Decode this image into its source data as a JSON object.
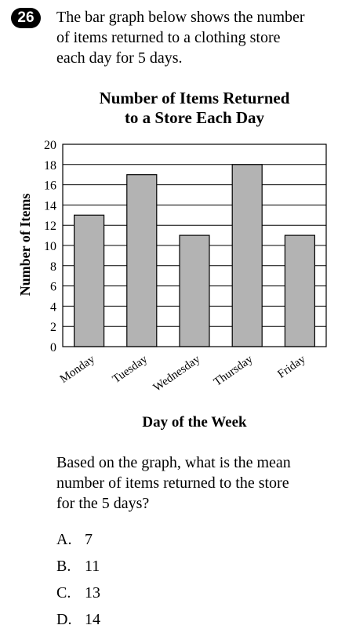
{
  "question": {
    "number": "26",
    "prompt_lines": [
      "The bar graph below shows the number",
      "of items returned to a clothing store",
      "each day for 5 days."
    ],
    "followup_lines": [
      "Based on the graph, what is the mean",
      "number of items returned to the store",
      "for the 5 days?"
    ],
    "options": [
      {
        "label": "A.",
        "value": "7"
      },
      {
        "label": "B.",
        "value": "11"
      },
      {
        "label": "C.",
        "value": "13"
      },
      {
        "label": "D.",
        "value": "14"
      }
    ]
  },
  "chart_data": {
    "type": "bar",
    "title_lines": [
      "Number of Items Returned",
      "to a Store Each Day"
    ],
    "xlabel": "Day of the Week",
    "ylabel": "Number of Items",
    "categories": [
      "Monday",
      "Tuesday",
      "Wednesday",
      "Thursday",
      "Friday"
    ],
    "values": [
      13,
      17,
      11,
      18,
      11
    ],
    "ylim": [
      0,
      20
    ],
    "yticks": [
      "0",
      "2",
      "4",
      "6",
      "8",
      "10",
      "12",
      "14",
      "16",
      "18",
      "20"
    ],
    "grid": true,
    "bar_color": "#b3b3b3"
  }
}
